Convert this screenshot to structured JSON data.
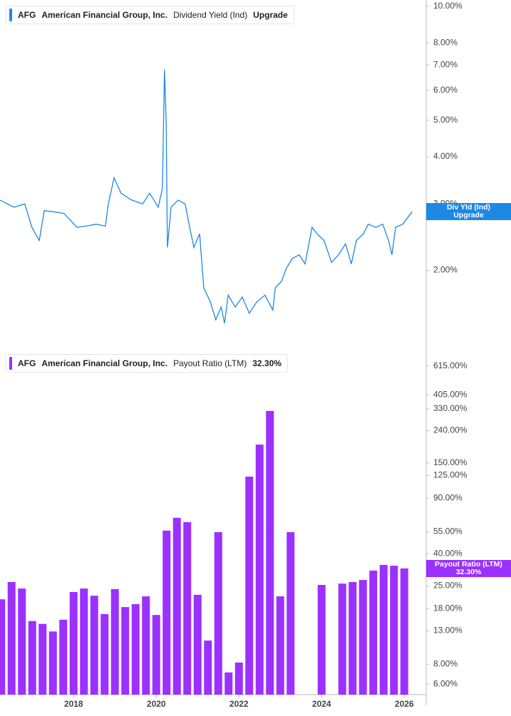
{
  "chart_data": [
    {
      "type": "line",
      "ticker": "AFG",
      "company": "American Financial Group, Inc.",
      "rating": "Upgrade",
      "badge_label": "Div Yld (Ind)",
      "log": true,
      "xlim": [
        2016.22,
        2026.53
      ],
      "ylim": [
        1.35,
        10.4
      ],
      "yticks": [
        {
          "value": 2,
          "label": "2.00%"
        },
        {
          "value": 3,
          "label": "3.00%"
        },
        {
          "value": 4,
          "label": "4.00%"
        },
        {
          "value": 5,
          "label": "5.00%"
        },
        {
          "value": 6,
          "label": "6.00%"
        },
        {
          "value": 7,
          "label": "7.00%"
        },
        {
          "value": 8,
          "label": "8.00%"
        },
        {
          "value": 10,
          "label": "10.00%"
        }
      ],
      "x": [
        2016.22,
        2016.56,
        2016.82,
        2016.99,
        2017.17,
        2017.29,
        2017.51,
        2017.77,
        2018.08,
        2018.29,
        2018.55,
        2018.77,
        2018.84,
        2018.98,
        2019.15,
        2019.41,
        2019.67,
        2019.84,
        2020.05,
        2020.15,
        2020.2,
        2020.24,
        2020.27,
        2020.36,
        2020.53,
        2020.7,
        2020.81,
        2020.91,
        2021.05,
        2021.15,
        2021.31,
        2021.44,
        2021.57,
        2021.65,
        2021.74,
        2021.91,
        2022.08,
        2022.25,
        2022.43,
        2022.63,
        2022.82,
        2022.88,
        2023.03,
        2023.15,
        2023.29,
        2023.46,
        2023.6,
        2023.77,
        2023.89,
        2024.06,
        2024.24,
        2024.41,
        2024.58,
        2024.72,
        2024.84,
        2025.01,
        2025.13,
        2025.31,
        2025.48,
        2025.62,
        2025.7,
        2025.79,
        2025.96,
        2026.19
      ],
      "series": [
        {
          "name": "Dividend Yield (Ind)",
          "color": "#1e88e5",
          "values": [
            3.07,
            2.94,
            3.0,
            2.6,
            2.4,
            2.88,
            2.86,
            2.83,
            2.6,
            2.62,
            2.65,
            2.62,
            3.0,
            3.52,
            3.2,
            3.07,
            3.0,
            3.2,
            2.94,
            3.3,
            6.8,
            4.9,
            2.3,
            2.94,
            3.07,
            3.0,
            2.6,
            2.3,
            2.5,
            1.8,
            1.65,
            1.48,
            1.6,
            1.45,
            1.72,
            1.6,
            1.7,
            1.54,
            1.65,
            1.72,
            1.57,
            1.8,
            1.87,
            2.03,
            2.15,
            2.2,
            2.08,
            2.6,
            2.5,
            2.4,
            2.1,
            2.2,
            2.35,
            2.08,
            2.4,
            2.5,
            2.65,
            2.6,
            2.65,
            2.4,
            2.2,
            2.6,
            2.65,
            2.86
          ]
        }
      ]
    },
    {
      "type": "bar",
      "ticker": "AFG",
      "company": "American Financial Group, Inc.",
      "legend_value": "32.30%",
      "log": true,
      "xlim": [
        2016.22,
        2026.53
      ],
      "ylim": [
        5.14,
        748
      ],
      "xticks": [
        2018,
        2020,
        2022,
        2024,
        2026
      ],
      "yticks": [
        {
          "value": 6,
          "label": "6.00%"
        },
        {
          "value": 8,
          "label": "8.00%"
        },
        {
          "value": 13,
          "label": "13.00%"
        },
        {
          "value": 18,
          "label": "18.00%"
        },
        {
          "value": 25,
          "label": "25.00%"
        },
        {
          "value": 40,
          "label": "40.00%"
        },
        {
          "value": 55,
          "label": "55.00%"
        },
        {
          "value": 90,
          "label": "90.00%"
        },
        {
          "value": 125,
          "label": "125.00%"
        },
        {
          "value": 150,
          "label": "150.00%"
        },
        {
          "value": 240,
          "label": "240.00%"
        },
        {
          "value": 330,
          "label": "330.00%"
        },
        {
          "value": 405,
          "label": "405.00%"
        },
        {
          "value": 615,
          "label": "615.00%"
        }
      ],
      "x": [
        2016.25,
        2016.5,
        2016.75,
        2017.0,
        2017.25,
        2017.5,
        2017.75,
        2018.0,
        2018.25,
        2018.5,
        2018.75,
        2019.0,
        2019.25,
        2019.5,
        2019.75,
        2020.0,
        2020.25,
        2020.5,
        2020.75,
        2021.0,
        2021.25,
        2021.5,
        2021.75,
        2022.0,
        2022.25,
        2022.5,
        2022.75,
        2023.0,
        2023.25,
        2023.5,
        2023.75,
        2024.0,
        2024.25,
        2024.5,
        2024.75,
        2025.0,
        2025.25,
        2025.5,
        2025.75,
        2026.0
      ],
      "series": [
        {
          "name": "Payout Ratio (LTM)",
          "color": "#9b30ff",
          "values": [
            20.6,
            26.5,
            24.1,
            15.0,
            14.4,
            12.9,
            15.3,
            22.9,
            24.1,
            21.7,
            16.6,
            23.9,
            18.4,
            19.2,
            21.5,
            16.4,
            56.0,
            67.5,
            63.4,
            22.0,
            11.3,
            54.8,
            7.1,
            8.2,
            123,
            196,
            320,
            21.5,
            54.8,
            null,
            null,
            25.4,
            null,
            25.9,
            26.5,
            27.3,
            31.3,
            34.0,
            33.6,
            32.3
          ]
        }
      ]
    }
  ]
}
